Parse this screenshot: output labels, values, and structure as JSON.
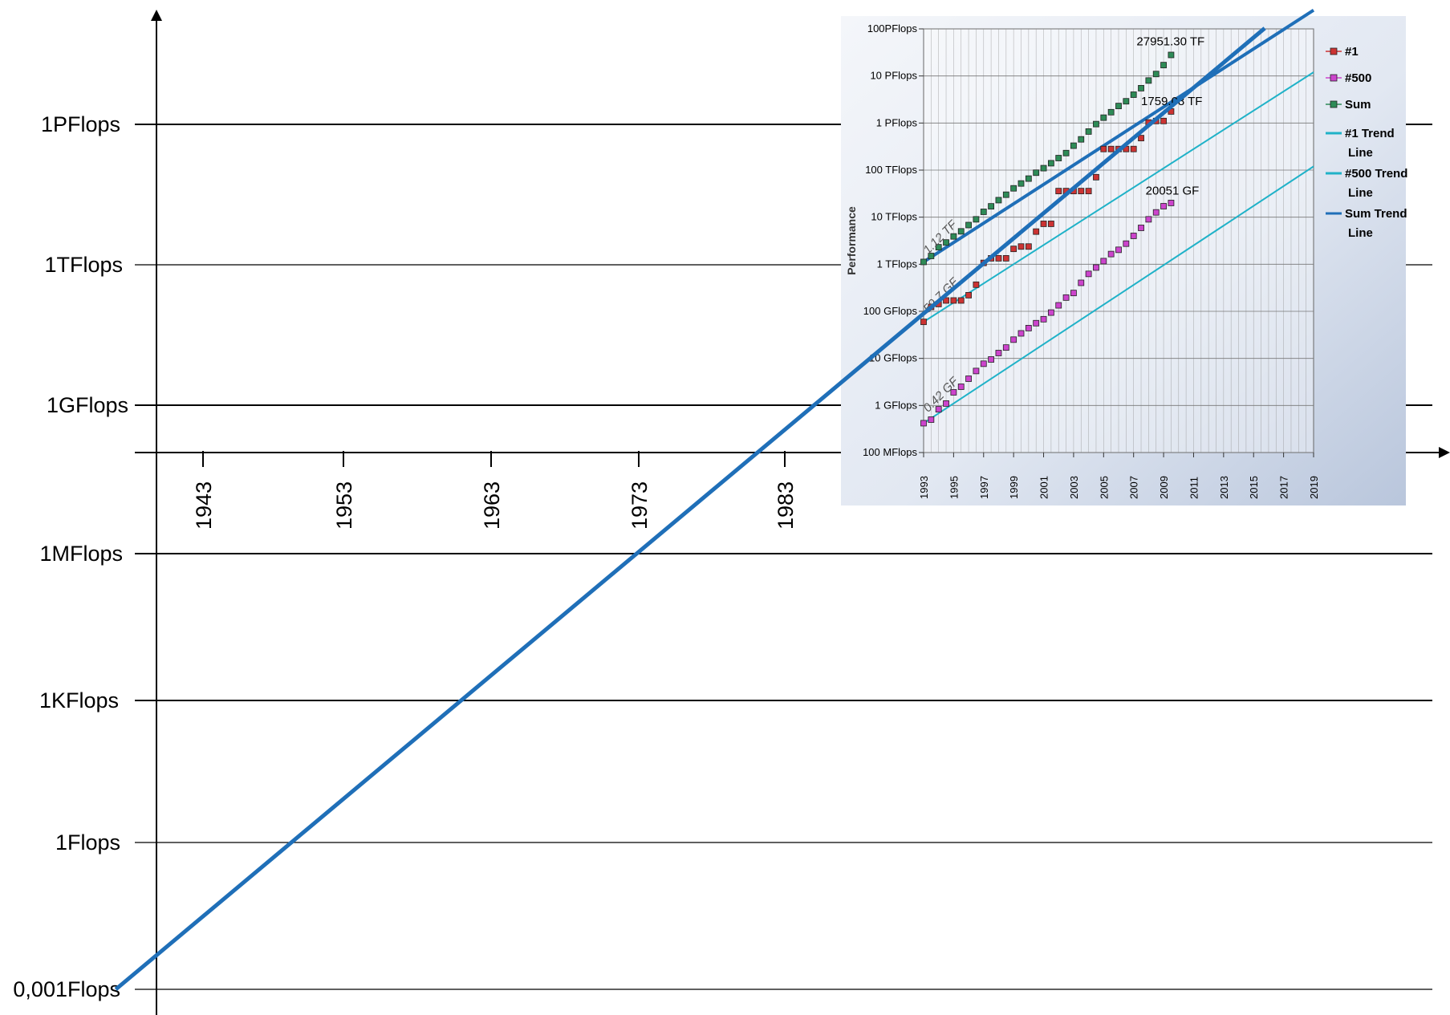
{
  "chart_data": [
    {
      "type": "line",
      "title": "",
      "xlabel": "",
      "ylabel": "",
      "x_ticks": [
        "1943",
        "1953",
        "1963",
        "1973",
        "1983"
      ],
      "y_ticks": [
        "1PFlops",
        "1TFlops",
        "1GFlops",
        "1MFlops",
        "1KFlops",
        "1Flops",
        "0,001Flops"
      ],
      "y_log_scale": true,
      "grid": "horizontal",
      "series": [
        {
          "name": "",
          "color": "#1f6fb8",
          "x": [
            1937,
            2016
          ],
          "y": [
            0.001,
            1e+17
          ]
        }
      ]
    },
    {
      "type": "scatter",
      "title": "",
      "ylabel": "Performance",
      "xlabel": "",
      "y_log_scale": true,
      "grid": "on",
      "legend_position": "right",
      "y_ticks": [
        "100PFlops",
        "10 PFlops",
        "1 PFlops",
        "100 TFlops",
        "10 TFlops",
        "1 TFlops",
        "100 GFlops",
        "10 GFlops",
        "1 GFlops",
        "100 MFlops"
      ],
      "x_ticks": [
        "1993",
        "1995",
        "1997",
        "1999",
        "2001",
        "2003",
        "2005",
        "2007",
        "2009",
        "2011",
        "2013",
        "2015",
        "2017",
        "2019"
      ],
      "legend": [
        "#1",
        "#500",
        "Sum",
        "#1 Trend Line",
        "#500 Trend Line",
        "Sum Trend Line"
      ],
      "annotations": [
        "27951.30 TF",
        "1759.08 TF",
        "20051 GF",
        "1.12 TF",
        "59.7 GF",
        "0.42 GF"
      ],
      "series": [
        {
          "name": "Sum",
          "color": "#2e8b57",
          "x": [
            1993.0,
            1993.5,
            1994.0,
            1994.5,
            1995.0,
            1995.5,
            1996.0,
            1996.5,
            1997.0,
            1997.5,
            1998.0,
            1998.5,
            1999.0,
            1999.5,
            2000.0,
            2000.5,
            2001.0,
            2001.5,
            2002.0,
            2002.5,
            2003.0,
            2003.5,
            2004.0,
            2004.5,
            2005.0,
            2005.5,
            2006.0,
            2006.5,
            2007.0,
            2007.5,
            2008.0,
            2008.5,
            2009.0,
            2009.5
          ],
          "y_gflops": [
            1120,
            1500,
            2300,
            2900,
            3900,
            5000,
            6800,
            9000,
            13000,
            17000,
            23000,
            30000,
            41000,
            52000,
            66000,
            88000,
            110000,
            140000,
            180000,
            230000,
            330000,
            450000,
            660000,
            950000,
            1300000,
            1700000,
            2300000,
            2900000,
            4000000,
            5500000,
            8000000,
            11000000,
            17000000,
            27951300
          ]
        },
        {
          "name": "#1",
          "color": "#cc3333",
          "x": [
            1993.0,
            1993.5,
            1994.0,
            1994.5,
            1995.0,
            1995.5,
            1996.0,
            1996.5,
            1997.0,
            1997.5,
            1998.0,
            1998.5,
            1999.0,
            1999.5,
            2000.0,
            2000.5,
            2001.0,
            2001.5,
            2002.0,
            2002.5,
            2003.0,
            2003.5,
            2004.0,
            2004.5,
            2005.0,
            2005.5,
            2006.0,
            2006.5,
            2007.0,
            2007.5,
            2008.0,
            2008.5,
            2009.0,
            2009.5
          ],
          "y_gflops": [
            59.7,
            124,
            143,
            170,
            170,
            170,
            220,
            368,
            1068,
            1338,
            1338,
            1338,
            2121,
            2379,
            2379,
            4938,
            7226,
            7226,
            35860,
            35860,
            35860,
            35860,
            35860,
            70720,
            280600,
            280600,
            280600,
            280600,
            280600,
            478200,
            1026000,
            1105000,
            1105000,
            1759000
          ]
        },
        {
          "name": "#500",
          "color": "#cc44cc",
          "x": [
            1993.0,
            1993.5,
            1994.0,
            1994.5,
            1995.0,
            1995.5,
            1996.0,
            1996.5,
            1997.0,
            1997.5,
            1998.0,
            1998.5,
            1999.0,
            1999.5,
            2000.0,
            2000.5,
            2001.0,
            2001.5,
            2002.0,
            2002.5,
            2003.0,
            2003.5,
            2004.0,
            2004.5,
            2005.0,
            2005.5,
            2006.0,
            2006.5,
            2007.0,
            2007.5,
            2008.0,
            2008.5,
            2009.0,
            2009.5
          ],
          "y_gflops": [
            0.42,
            0.5,
            0.83,
            1.1,
            1.9,
            2.5,
            3.7,
            5.4,
            7.7,
            9.5,
            13,
            17,
            25,
            34,
            44,
            56,
            68,
            94,
            134,
            196,
            245,
            403,
            624,
            851,
            1166,
            1646,
            2026,
            2737,
            4005,
            5929,
            9000,
            12640,
            17100,
            20051
          ]
        },
        {
          "name": "#1 Trend Line",
          "color": "#20b2c8",
          "x": [
            1993,
            2019
          ],
          "y_gflops": [
            59.7,
            12000000.0
          ]
        },
        {
          "name": "#500 Trend Line",
          "color": "#20b2c8",
          "x": [
            1993,
            2019
          ],
          "y_gflops": [
            0.42,
            120000.0
          ]
        },
        {
          "name": "Sum Trend Line",
          "color": "#1f6fb8",
          "x": [
            1993,
            2019
          ],
          "y_gflops": [
            1120,
            250000000.0
          ]
        }
      ]
    }
  ]
}
